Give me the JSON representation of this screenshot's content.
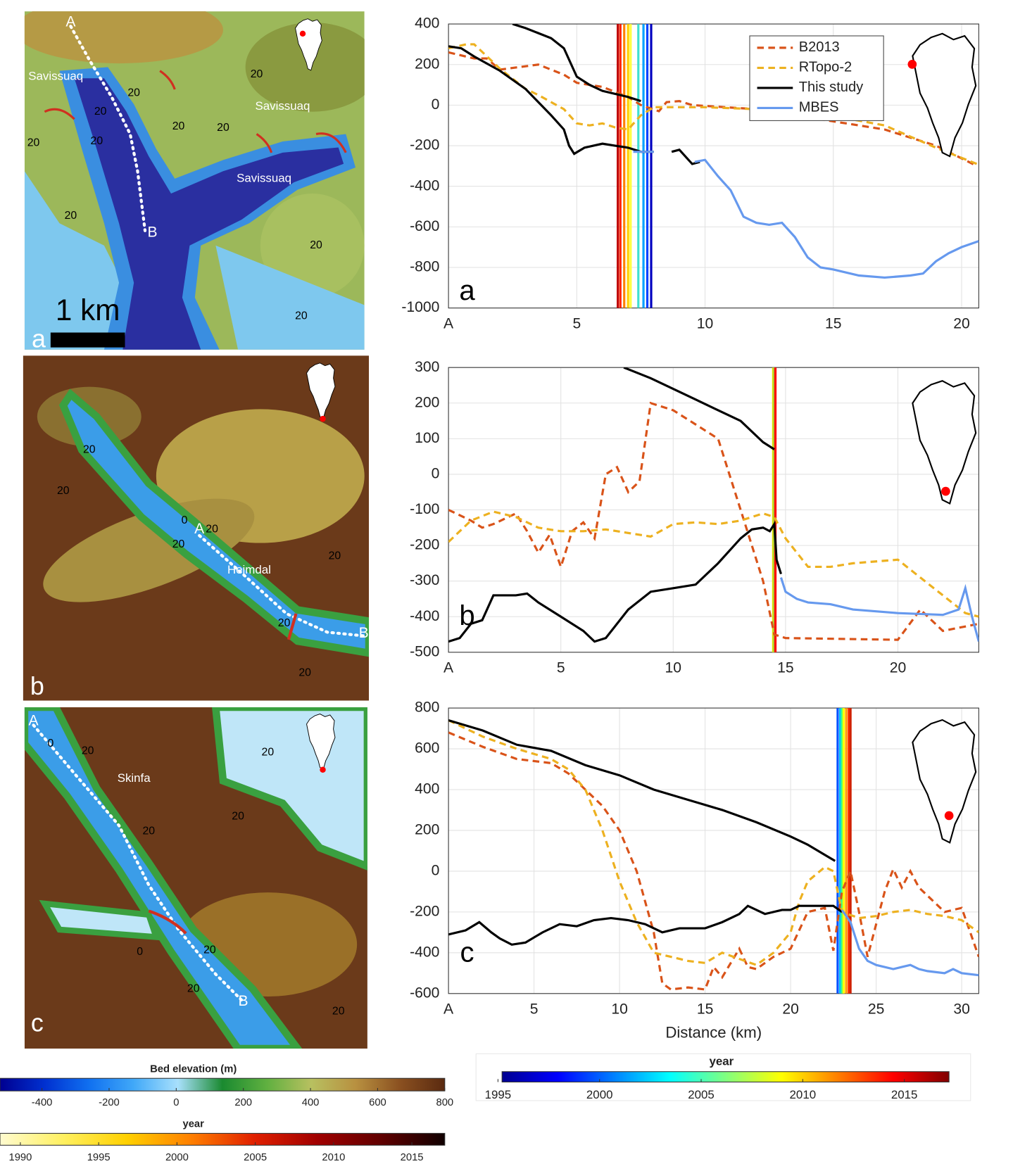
{
  "chart_data": [
    {
      "type": "line",
      "label": "a",
      "legend": "upper right",
      "grid": true,
      "xlim": [
        0,
        20.67
      ],
      "xticks": [
        {
          "value": 0,
          "label": "A"
        },
        5,
        10,
        15,
        20
      ],
      "ylim": [
        -1000,
        400
      ],
      "yticks": [
        -1000,
        -800,
        -600,
        -400,
        -200,
        0,
        200,
        400
      ],
      "series": [
        {
          "name": "B2013",
          "color": "#d95319",
          "dash": true,
          "x": [
            0,
            1,
            1.5,
            2,
            3.5,
            4.5,
            5,
            6,
            7,
            7.5,
            8.2,
            8.5,
            9,
            9.5,
            12,
            15,
            17,
            19,
            20.6
          ],
          "values": [
            260,
            230,
            230,
            175,
            200,
            150,
            110,
            90,
            40,
            0,
            -30,
            15,
            20,
            0,
            -20,
            -80,
            -120,
            -200,
            -300
          ]
        },
        {
          "name": "RTopo-2",
          "color": "#edb120",
          "dash": true,
          "x": [
            0,
            0.7,
            1,
            2,
            3,
            3.5,
            4.5,
            5,
            5.5,
            6,
            6.5,
            7,
            7.5,
            8,
            10,
            14,
            17,
            19,
            20.6
          ],
          "values": [
            280,
            300,
            300,
            180,
            80,
            50,
            -20,
            -90,
            -100,
            -90,
            -110,
            -120,
            -50,
            -10,
            -10,
            -30,
            -100,
            -210,
            -290
          ]
        },
        {
          "name": "This study",
          "color": "#000000",
          "dash": false,
          "x": [
            0,
            0.5,
            1,
            2,
            3,
            4,
            4.5,
            4.7,
            4.9,
            5.3,
            6,
            6.5,
            7,
            7.5,
            8,
            8.3,
            8.7,
            9,
            9.5,
            9.8
          ],
          "values": [
            290,
            280,
            240,
            170,
            80,
            -50,
            -120,
            -200,
            -240,
            -210,
            -190,
            -200,
            -210,
            -230,
            -230,
            null,
            -230,
            -220,
            -290,
            -280
          ]
        },
        {
          "color": "#000000",
          "dash": false,
          "x": [
            2.5,
            3,
            4,
            4.5,
            5,
            5.5,
            6,
            7,
            7.5
          ],
          "values": [
            400,
            380,
            330,
            280,
            140,
            100,
            70,
            40,
            20
          ]
        },
        {
          "name": "MBES",
          "color": "#6699ee",
          "dash": false,
          "x": [
            7.2,
            8,
            8.2,
            9.6,
            10,
            10.5,
            11,
            11.5,
            12,
            12.5,
            13,
            13.5,
            14,
            14.5,
            15,
            16,
            17,
            18,
            18.5,
            19,
            19.5,
            20,
            20.67
          ],
          "values": [
            -230,
            -230,
            null,
            -280,
            -270,
            -350,
            -420,
            -550,
            -580,
            -590,
            -580,
            -650,
            -750,
            -800,
            -810,
            -840,
            -850,
            -840,
            -830,
            -770,
            -730,
            -700,
            -670
          ]
        }
      ],
      "fronts": {
        "x": [
          6.6,
          6.7,
          6.85,
          7.0,
          7.1,
          7.4,
          7.6,
          7.75,
          7.9
        ],
        "colors": [
          "#c00000",
          "#ff2000",
          "#ff8000",
          "#ffd000",
          "#ffff40",
          "#40e0d0",
          "#00a0ff",
          "#0040ff",
          "#0000c0"
        ]
      }
    },
    {
      "type": "line",
      "label": "b",
      "grid": true,
      "xlim": [
        0,
        23.6
      ],
      "xticks": [
        {
          "value": 0,
          "label": "A"
        },
        5,
        10,
        15,
        20
      ],
      "ylim": [
        -500,
        300
      ],
      "yticks": [
        -500,
        -400,
        -300,
        -200,
        -100,
        0,
        100,
        200,
        300
      ],
      "series": [
        {
          "color": "#d95319",
          "dash": true,
          "x": [
            0,
            1,
            1.5,
            2,
            3,
            3.5,
            4,
            4.5,
            5,
            5.5,
            6,
            6.5,
            7,
            7.5,
            8,
            8.5,
            9,
            10,
            11,
            12,
            13,
            14,
            14.5,
            15,
            20,
            21,
            22,
            23.6
          ],
          "values": [
            -100,
            -130,
            -150,
            -140,
            -110,
            -160,
            -220,
            -170,
            -260,
            -160,
            -135,
            -180,
            0,
            20,
            -50,
            -20,
            200,
            180,
            140,
            100,
            -100,
            -300,
            -450,
            -460,
            -465,
            -380,
            -440,
            -420
          ]
        },
        {
          "color": "#edb120",
          "dash": true,
          "x": [
            0,
            1,
            2,
            3,
            4,
            5,
            6,
            7,
            8,
            9,
            10,
            11,
            12,
            13,
            14,
            14.5,
            15,
            16,
            17,
            18,
            20,
            21,
            22,
            23,
            23.6
          ],
          "values": [
            -190,
            -130,
            -105,
            -120,
            -150,
            -160,
            -160,
            -155,
            -165,
            -175,
            -140,
            -135,
            -140,
            -130,
            -110,
            -120,
            -180,
            -260,
            -260,
            -250,
            -240,
            -290,
            -340,
            -390,
            -400
          ]
        },
        {
          "color": "#000000",
          "dash": false,
          "x": [
            0,
            0.5,
            1,
            1.5,
            2,
            3,
            3.5,
            4,
            5,
            6,
            6.5,
            7,
            7.5,
            8,
            9,
            10,
            11,
            12,
            13,
            13.5,
            14,
            14.3,
            14.5,
            14.6,
            14.8
          ],
          "values": [
            -470,
            -460,
            -420,
            -410,
            -340,
            -340,
            -335,
            -360,
            -400,
            -440,
            -470,
            -460,
            -420,
            -380,
            -330,
            -320,
            -310,
            -250,
            -180,
            -155,
            -150,
            -160,
            -140,
            -240,
            -280
          ]
        },
        {
          "color": "#000000",
          "dash": false,
          "x": [
            7.8,
            9,
            10,
            11,
            12,
            13,
            13.5,
            14,
            14.5
          ],
          "values": [
            300,
            270,
            240,
            210,
            180,
            150,
            120,
            90,
            70
          ]
        },
        {
          "color": "#6699ee",
          "dash": false,
          "x": [
            14.8,
            15,
            15.5,
            16,
            17,
            18,
            20,
            22,
            22.7,
            23,
            23.3,
            23.6
          ],
          "values": [
            -290,
            -330,
            -350,
            -360,
            -365,
            -380,
            -390,
            -395,
            -380,
            -320,
            -400,
            -470
          ]
        }
      ],
      "fronts": {
        "x": [
          14.45,
          14.5,
          14.55
        ],
        "colors": [
          "#e0e000",
          "#a0d040",
          "#ff0000"
        ]
      }
    },
    {
      "type": "line",
      "label": "c",
      "xlabel": "Distance (km)",
      "grid": true,
      "xlim": [
        0,
        31
      ],
      "xticks": [
        {
          "value": 0,
          "label": "A"
        },
        5,
        10,
        15,
        20,
        25,
        30
      ],
      "ylim": [
        -600,
        800
      ],
      "yticks": [
        -600,
        -400,
        -200,
        0,
        200,
        400,
        600,
        800
      ],
      "series": [
        {
          "color": "#d95319",
          "dash": true,
          "x": [
            0,
            2,
            4,
            6,
            7,
            8,
            9,
            10,
            11,
            12,
            12.5,
            13,
            14,
            15,
            15.5,
            16,
            17,
            17.5,
            18,
            19,
            20,
            21,
            22,
            22.5,
            23,
            23.5,
            24,
            24.5,
            25.5,
            26,
            26.5,
            27,
            27.5,
            28,
            29,
            30,
            31
          ],
          "values": [
            680,
            610,
            550,
            530,
            480,
            400,
            320,
            200,
            0,
            -300,
            -550,
            -580,
            -570,
            -580,
            -470,
            -520,
            -380,
            -470,
            -480,
            -420,
            -380,
            -200,
            -180,
            -390,
            -100,
            0,
            -200,
            -420,
            -100,
            10,
            -80,
            0,
            -80,
            -120,
            -200,
            -180,
            -420
          ]
        },
        {
          "color": "#edb120",
          "dash": true,
          "x": [
            0,
            2,
            4,
            6,
            7,
            8,
            9,
            10,
            11,
            12,
            13,
            14,
            15,
            16,
            17,
            18,
            19,
            20,
            20.5,
            21,
            22,
            22.5,
            23,
            24,
            25,
            26,
            27,
            28,
            29,
            30,
            31
          ],
          "values": [
            740,
            660,
            600,
            550,
            500,
            400,
            200,
            -50,
            -250,
            -400,
            -420,
            -440,
            -450,
            -400,
            -430,
            -460,
            -400,
            -300,
            -150,
            -50,
            20,
            0,
            -200,
            -230,
            -220,
            -200,
            -190,
            -210,
            -220,
            -240,
            -300
          ]
        },
        {
          "color": "#000000",
          "dash": false,
          "x": [
            0,
            1,
            1.8,
            2.5,
            3,
            3.7,
            4.5,
            5.5,
            6.5,
            7.5,
            8.5,
            9.5,
            10.5,
            11.5,
            12.5,
            13.5,
            15,
            16,
            17,
            17.5,
            18.5,
            19.5,
            20,
            20.5,
            21.5,
            22.5,
            23
          ],
          "values": [
            -310,
            -290,
            -250,
            -300,
            -330,
            -360,
            -350,
            -300,
            -260,
            -270,
            -240,
            -230,
            -240,
            -260,
            -300,
            -280,
            -280,
            -250,
            -210,
            -170,
            -210,
            -190,
            -190,
            -170,
            -170,
            -170,
            -200
          ]
        },
        {
          "color": "#000000",
          "dash": false,
          "x": [
            0,
            2,
            4,
            6,
            8,
            10,
            12,
            14,
            16,
            18,
            20,
            21,
            22,
            22.6
          ],
          "values": [
            740,
            690,
            620,
            590,
            520,
            470,
            400,
            350,
            300,
            240,
            170,
            130,
            80,
            50
          ]
        },
        {
          "color": "#6699ee",
          "dash": false,
          "x": [
            23,
            23.5,
            24,
            24.5,
            25,
            26,
            26.5,
            27,
            27.5,
            28,
            29,
            29.5,
            30,
            31
          ],
          "values": [
            -190,
            -250,
            -380,
            -440,
            -460,
            -480,
            -470,
            -460,
            -480,
            -490,
            -500,
            -480,
            -500,
            -510
          ]
        }
      ],
      "fronts": {
        "x": [
          22.75,
          22.9,
          23.0,
          23.1,
          23.25,
          23.4,
          23.5
        ],
        "colors": [
          "#0050ff",
          "#00c0ff",
          "#40ff80",
          "#ffff00",
          "#ff9900",
          "#ff3000",
          "#d02000"
        ]
      }
    }
  ],
  "maps": [
    {
      "letter": "a",
      "labels": [
        "A",
        "B",
        "Savissuaq",
        "Savissuaq",
        "Savissuaq"
      ],
      "scale": "1 km",
      "contours": [
        "20",
        "20",
        "20",
        "20",
        "20",
        "20",
        "20",
        "20",
        "20",
        "20"
      ]
    },
    {
      "letter": "b",
      "labels": [
        "A",
        "B",
        "Heimdal"
      ],
      "contours": [
        "20",
        "20",
        "20",
        "20",
        "0",
        "20",
        "20",
        "20"
      ]
    },
    {
      "letter": "c",
      "labels": [
        "A",
        "B",
        "Skinfa"
      ],
      "contours": [
        "0",
        "20",
        "20",
        "20",
        "20",
        "0",
        "20",
        "20",
        "20"
      ]
    }
  ],
  "colorbars": [
    {
      "title": "Bed elevation (m)",
      "lim": [
        -525,
        800
      ],
      "ticks": [
        -400,
        -200,
        0,
        200,
        400,
        600,
        800
      ],
      "colors": [
        "#000090",
        "#0030d0",
        "#1070f0",
        "#40a8f8",
        "#a8e0fc",
        "#1a8a30",
        "#60b040",
        "#b8c060",
        "#b89040",
        "#8a5020",
        "#5a2a10"
      ]
    },
    {
      "title": "year",
      "lim": [
        1988.7,
        2017.1
      ],
      "ticks": [
        1990,
        1995,
        2000,
        2005,
        2010,
        2015
      ],
      "colors": [
        "#fffbd0",
        "#fff060",
        "#ffd000",
        "#ff8000",
        "#e02000",
        "#a00000",
        "#600000",
        "#100000"
      ]
    },
    {
      "title": "year",
      "lim": [
        1995.2,
        2017.2
      ],
      "ticks": [
        1995,
        2000,
        2005,
        2010,
        2015
      ],
      "colors": [
        "#000090",
        "#0000ff",
        "#0080ff",
        "#00ffff",
        "#80ff80",
        "#ffff00",
        "#ff8000",
        "#ff0000",
        "#800000"
      ]
    }
  ]
}
